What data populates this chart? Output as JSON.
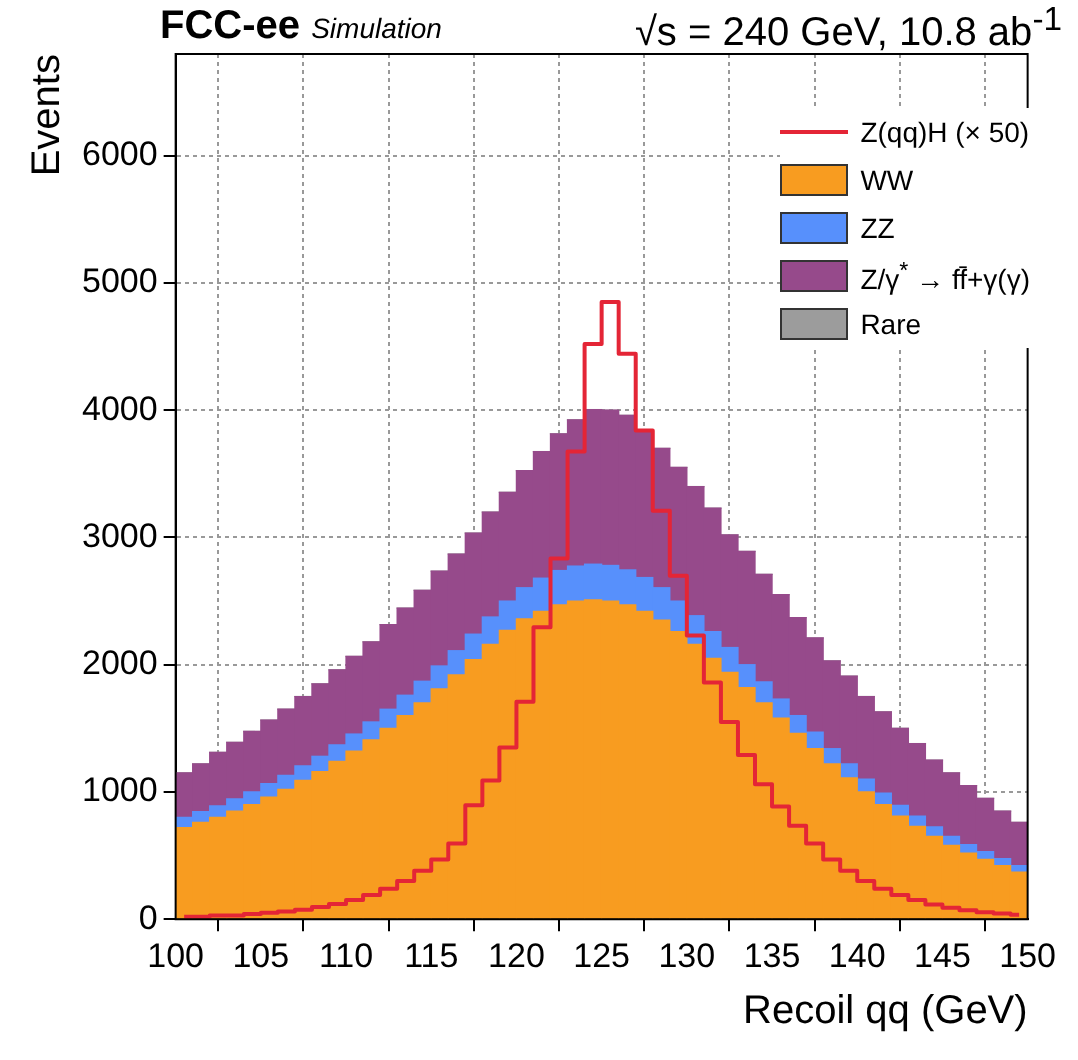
{
  "chart_data": {
    "type": "bar",
    "title": "FCC-ee",
    "subtitle": "Simulation",
    "annotations": [
      "√s = 240 GeV, 10.8 ab$^{-1}$"
    ],
    "xlabel": "Recoil qq (GeV)",
    "ylabel": "Events",
    "x": [
      100.5,
      101.5,
      102.5,
      103.5,
      104.5,
      105.5,
      106.5,
      107.5,
      108.5,
      109.5,
      110.5,
      111.5,
      112.5,
      113.5,
      114.5,
      115.5,
      116.5,
      117.5,
      118.5,
      119.5,
      120.5,
      121.5,
      122.5,
      123.5,
      124.5,
      125.5,
      126.5,
      127.5,
      128.5,
      129.5,
      130.5,
      131.5,
      132.5,
      133.5,
      134.5,
      135.5,
      136.5,
      137.5,
      138.5,
      139.5,
      140.5,
      141.5,
      142.5,
      143.5,
      144.5,
      145.5,
      146.5,
      147.5,
      148.5,
      149.5
    ],
    "stacked": true,
    "xlim": [
      100,
      150
    ],
    "xticks": [
      100,
      105,
      110,
      115,
      120,
      125,
      130,
      135,
      140,
      145,
      150
    ],
    "ylim": [
      0,
      6800
    ],
    "yticks": [
      0,
      1000,
      2000,
      3000,
      4000,
      5000,
      6000
    ],
    "grid": true,
    "legend": "top right",
    "series": [
      {
        "name": "Z(qq)H (× 50)",
        "type": "step",
        "color": "#e42536",
        "x": [
          100.5,
          101.5,
          102.5,
          103.5,
          104.5,
          105.5,
          106.5,
          107.5,
          108.5,
          109.5,
          110.5,
          111.5,
          112.5,
          113.5,
          114.5,
          115.5,
          116.5,
          117.5,
          118.5,
          119.5,
          120.5,
          121.5,
          122.5,
          123.5,
          124.5,
          125.5,
          126.5,
          127.5,
          128.5,
          129.5,
          130.5,
          131.5,
          132.5,
          133.5,
          134.5,
          135.5,
          136.5,
          137.5,
          138.5,
          139.5,
          140.5,
          141.5,
          142.5,
          143.5,
          144.5,
          145.5,
          146.5,
          147.5,
          148.5,
          149.5
        ],
        "values": [
          20,
          20,
          30,
          30,
          40,
          50,
          60,
          75,
          95,
          120,
          150,
          190,
          240,
          300,
          380,
          470,
          595,
          895,
          1090,
          1350,
          1710,
          2295,
          2835,
          3675,
          4520,
          4850,
          4445,
          3840,
          3210,
          2700,
          2230,
          1860,
          1550,
          1290,
          1060,
          885,
          735,
          595,
          470,
          380,
          300,
          240,
          190,
          150,
          115,
          90,
          70,
          55,
          45,
          35
        ]
      },
      {
        "name": "WW",
        "color": "#f89c20",
        "values": [
          720,
          760,
          800,
          850,
          900,
          960,
          1020,
          1090,
          1160,
          1240,
          1320,
          1410,
          1500,
          1600,
          1700,
          1810,
          1920,
          2040,
          2160,
          2270,
          2360,
          2420,
          2470,
          2500,
          2510,
          2500,
          2470,
          2420,
          2350,
          2260,
          2160,
          2050,
          1940,
          1820,
          1700,
          1580,
          1460,
          1340,
          1220,
          1110,
          1000,
          900,
          810,
          730,
          650,
          580,
          520,
          470,
          420,
          370
        ]
      },
      {
        "name": "ZZ",
        "color": "#5790fc",
        "values": [
          80,
          85,
          90,
          95,
          100,
          105,
          110,
          115,
          120,
          130,
          135,
          140,
          150,
          160,
          170,
          180,
          190,
          200,
          215,
          230,
          245,
          260,
          270,
          275,
          280,
          280,
          275,
          265,
          255,
          240,
          225,
          210,
          195,
          180,
          165,
          150,
          140,
          130,
          120,
          110,
          100,
          90,
          85,
          80,
          75,
          70,
          65,
          60,
          55,
          50
        ]
      },
      {
        "name": "Z/γ$^{*}$ → ff̄+γ(γ)",
        "color": "#964a8b",
        "values": [
          350,
          375,
          420,
          445,
          475,
          500,
          520,
          545,
          570,
          590,
          610,
          630,
          665,
          685,
          715,
          745,
          760,
          795,
          825,
          855,
          920,
          995,
          1075,
          1150,
          1215,
          1220,
          1215,
          1155,
          1095,
          1050,
          1015,
          970,
          885,
          890,
          845,
          820,
          770,
          740,
          690,
          690,
          650,
          640,
          605,
          570,
          525,
          500,
          465,
          420,
          375,
          340
        ]
      },
      {
        "name": "Rare",
        "color": "#9c9c9c",
        "values": [
          0,
          0,
          0,
          0,
          0,
          0,
          0,
          0,
          0,
          0,
          0,
          0,
          0,
          0,
          0,
          0,
          0,
          0,
          0,
          0,
          0,
          0,
          0,
          0,
          0,
          0,
          0,
          0,
          0,
          0,
          0,
          0,
          0,
          0,
          0,
          0,
          0,
          0,
          0,
          0,
          0,
          0,
          0,
          0,
          0,
          0,
          0,
          0,
          0,
          0
        ]
      }
    ]
  }
}
